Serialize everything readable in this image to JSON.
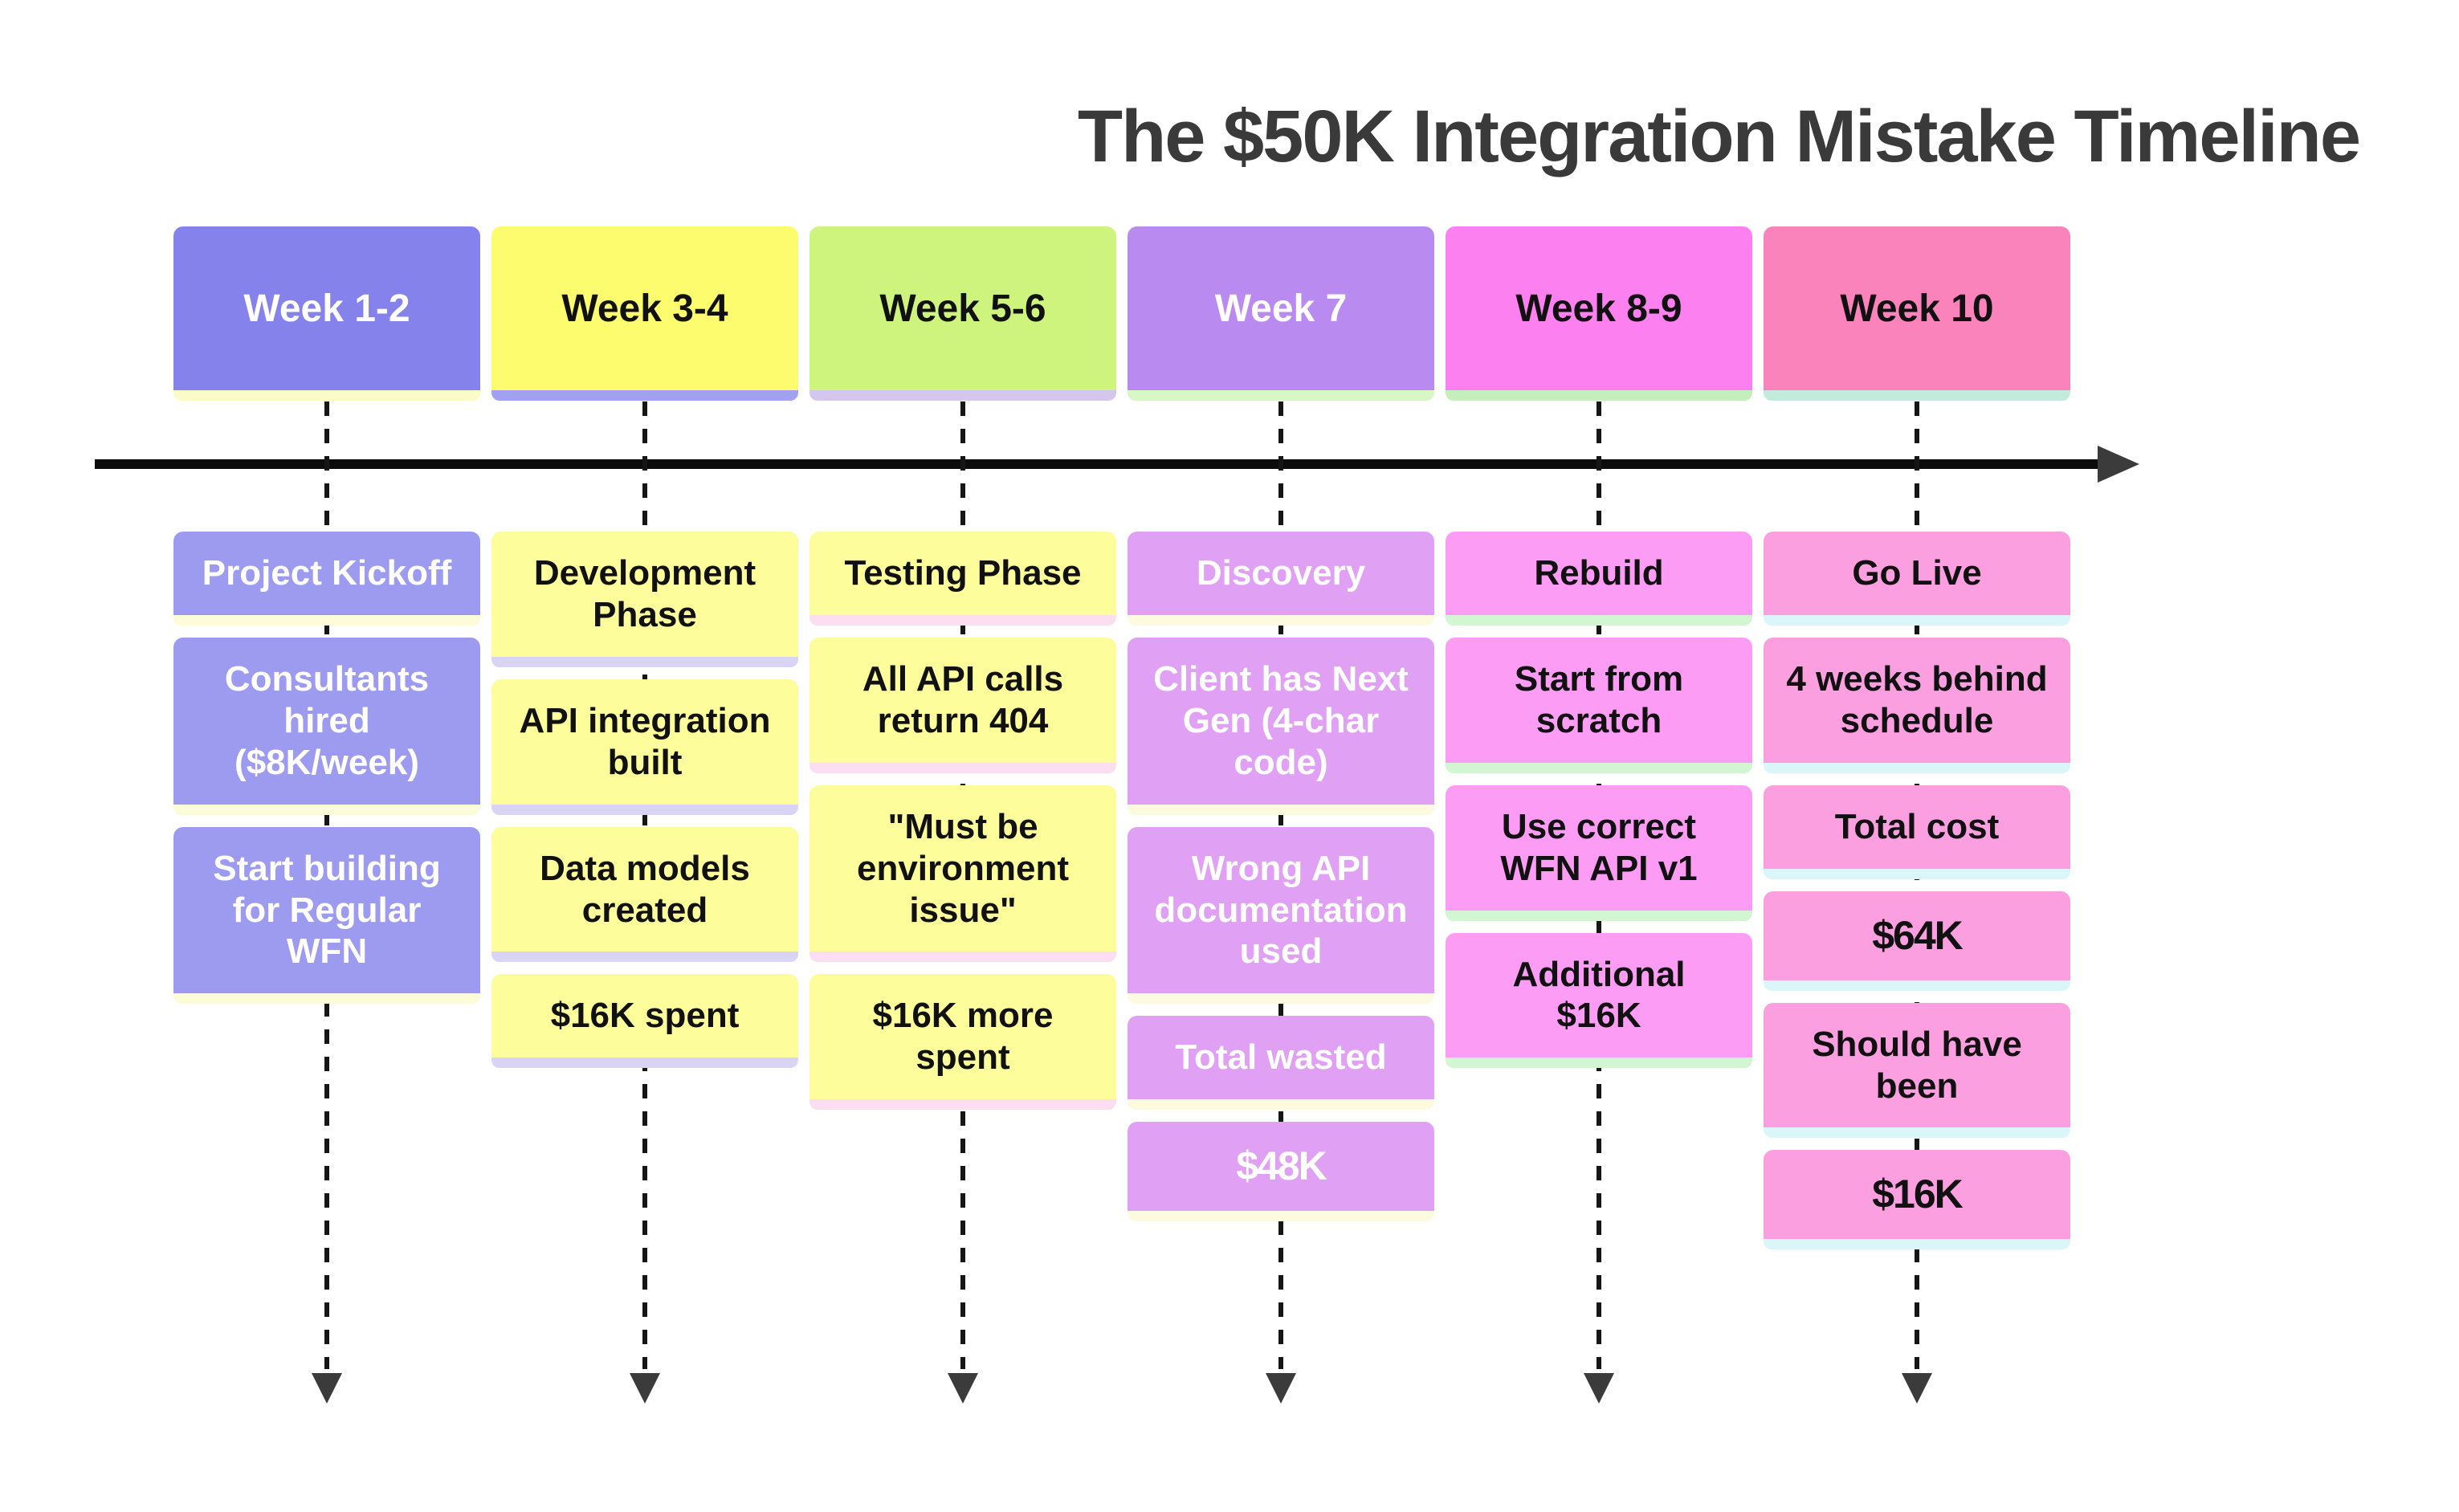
{
  "title": "The $50K Integration Mistake Timeline",
  "axis": {
    "line_color": "#0c0c0c",
    "arrowhead_color": "#3b3b3b",
    "connector_color": "#161616"
  },
  "timeline": {
    "columns": [
      {
        "period": "Week 1-2",
        "colors": {
          "header_bg": "#8583eb",
          "header_fg": "#ffffff",
          "header_shadow": "#fbfbc8",
          "card_bg": "#9d9bf0",
          "card_fg": "#ffffff",
          "card_shadow": "#fcfcd8"
        },
        "events": [
          {
            "text": "Project Kickoff"
          },
          {
            "text": "Consultants hired ($8K/week)"
          },
          {
            "text": "Start building for Regular WFN"
          }
        ]
      },
      {
        "period": "Week 3-4",
        "colors": {
          "header_bg": "#fcfc6e",
          "header_fg": "#111111",
          "header_shadow": "#a2a0f0",
          "card_bg": "#fdfd9b",
          "card_fg": "#111111",
          "card_shadow": "#d9d3f6"
        },
        "events": [
          {
            "text": "Development Phase"
          },
          {
            "text": "API integration built"
          },
          {
            "text": "Data models created"
          },
          {
            "text": "$16K spent"
          }
        ]
      },
      {
        "period": "Week 5-6",
        "colors": {
          "header_bg": "#cff47e",
          "header_fg": "#111111",
          "header_shadow": "#d5c6ee",
          "card_bg": "#fdfd9b",
          "card_fg": "#111111",
          "card_shadow": "#fcdef1"
        },
        "events": [
          {
            "text": "Testing Phase"
          },
          {
            "text": "All API calls return 404"
          },
          {
            "text": "\"Must be environment issue\""
          },
          {
            "text": "$16K more spent"
          }
        ]
      },
      {
        "period": "Week 7",
        "colors": {
          "header_bg": "#b98af0",
          "header_fg": "#ffffff",
          "header_shadow": "#d7f7c4",
          "card_bg": "#e0a0f4",
          "card_fg": "#ffffff",
          "card_shadow": "#fdfbdf"
        },
        "events": [
          {
            "text": "Discovery"
          },
          {
            "text": "Client has Next Gen (4-char code)"
          },
          {
            "text": "Wrong API documentation used"
          },
          {
            "text": "Total wasted"
          },
          {
            "text": "$48K",
            "money": true
          }
        ]
      },
      {
        "period": "Week 8-9",
        "colors": {
          "header_bg": "#fd80f1",
          "header_fg": "#111111",
          "header_shadow": "#c4eebc",
          "card_bg": "#fd9cf4",
          "card_fg": "#111111",
          "card_shadow": "#d2f5d2"
        },
        "events": [
          {
            "text": "Rebuild"
          },
          {
            "text": "Start from scratch"
          },
          {
            "text": "Use correct WFN API v1"
          },
          {
            "text": "Additional $16K"
          }
        ]
      },
      {
        "period": "Week 10",
        "colors": {
          "header_bg": "#fa83bb",
          "header_fg": "#111111",
          "header_shadow": "#c2ebdb",
          "card_bg": "#fb9fe0",
          "card_fg": "#111111",
          "card_shadow": "#daf6f9"
        },
        "events": [
          {
            "text": "Go Live"
          },
          {
            "text": "4 weeks behind schedule"
          },
          {
            "text": "Total cost"
          },
          {
            "text": "$64K",
            "money": true
          },
          {
            "text": "Should have been"
          },
          {
            "text": "$16K",
            "money": true
          }
        ]
      }
    ]
  }
}
